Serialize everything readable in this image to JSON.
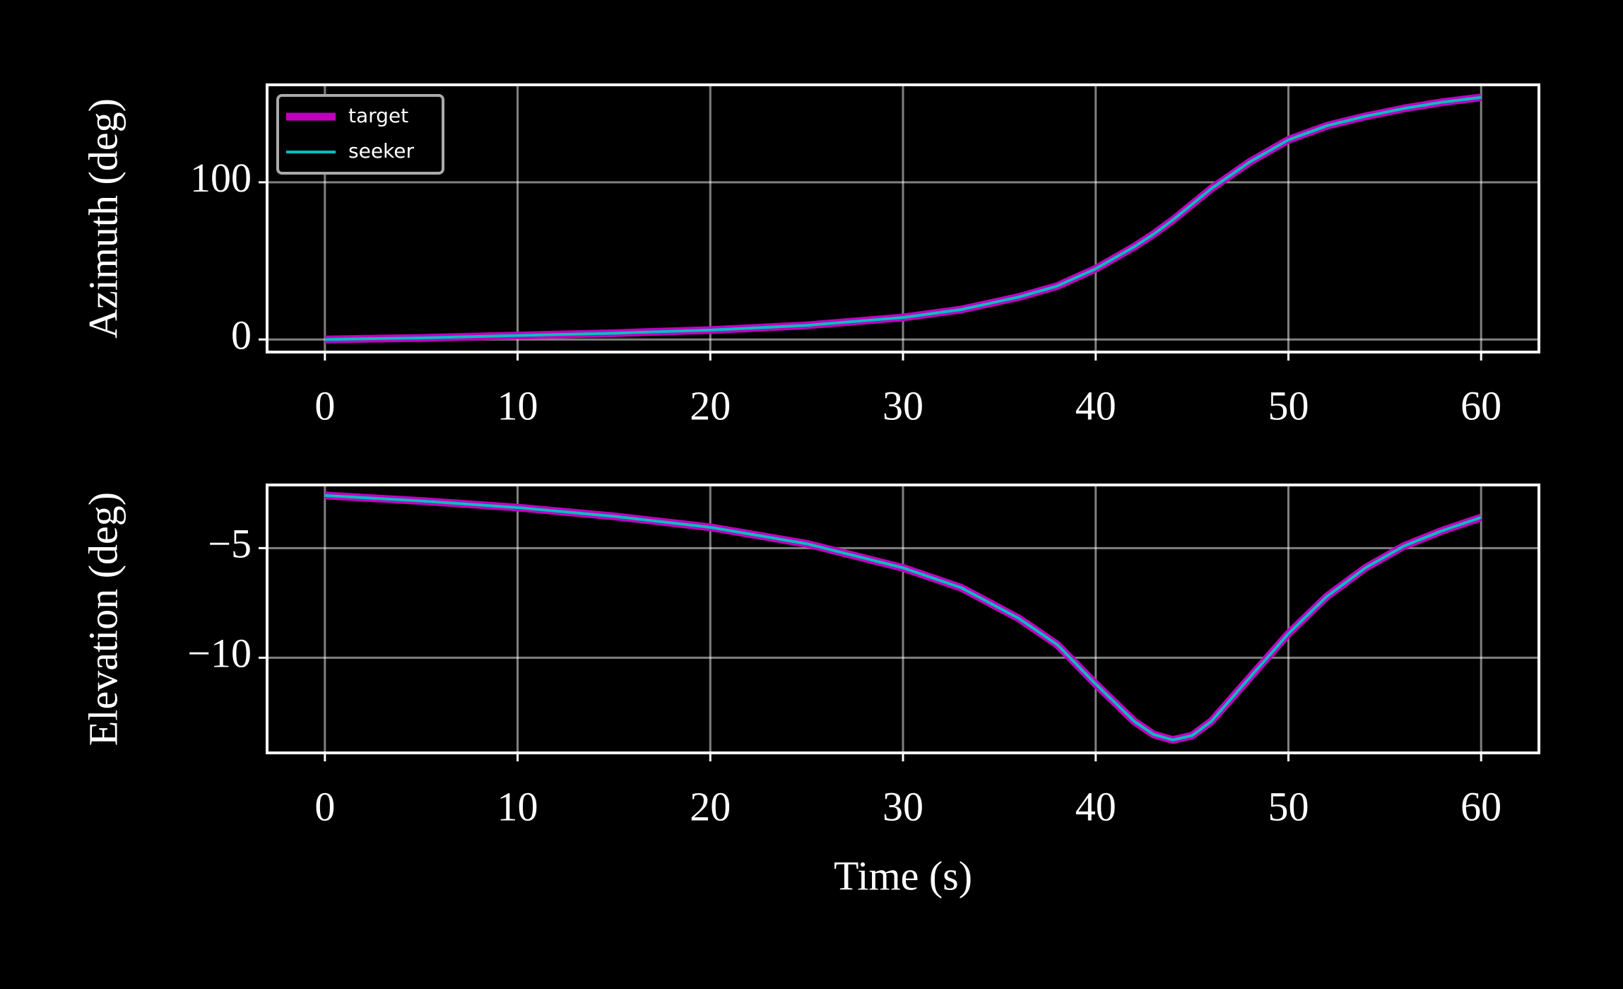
{
  "chart_data": [
    {
      "type": "line",
      "ylabel": "Azimuth (deg)",
      "x": [
        0,
        5,
        10,
        15,
        20,
        25,
        30,
        33,
        36,
        38,
        40,
        42,
        43,
        44,
        45,
        46,
        48,
        50,
        52,
        54,
        56,
        58,
        60
      ],
      "series": [
        {
          "name": "target",
          "color": "#bf00bf",
          "values": [
            0,
            1,
            2.5,
            4,
            6,
            9,
            14,
            19,
            27,
            34,
            45,
            59,
            67,
            76,
            86,
            96,
            113,
            127,
            136,
            142,
            147,
            151,
            154
          ]
        },
        {
          "name": "seeker",
          "color": "#00bfbf",
          "values": [
            0,
            1,
            2.5,
            4,
            6,
            9,
            14,
            19,
            27,
            34,
            45,
            59,
            67,
            76,
            86,
            96,
            113,
            127,
            136,
            142,
            147,
            151,
            154
          ]
        }
      ],
      "xlim": [
        -3,
        63
      ],
      "xticks": [
        0,
        10,
        20,
        30,
        40,
        50,
        60
      ],
      "ylim": [
        -8,
        162
      ],
      "yticks": [
        0,
        100
      ],
      "grid": true,
      "legend": "upper left"
    },
    {
      "type": "line",
      "ylabel": "Elevation (deg)",
      "xlabel": "Time (s)",
      "x": [
        0,
        5,
        10,
        15,
        20,
        25,
        30,
        33,
        36,
        38,
        40,
        42,
        43,
        44,
        45,
        46,
        48,
        50,
        52,
        54,
        56,
        58,
        60
      ],
      "series": [
        {
          "name": "target",
          "color": "#bf00bf",
          "values": [
            -2.6,
            -2.85,
            -3.15,
            -3.55,
            -4.05,
            -4.8,
            -5.9,
            -6.8,
            -8.2,
            -9.4,
            -11.2,
            -12.9,
            -13.5,
            -13.75,
            -13.55,
            -12.9,
            -10.9,
            -8.9,
            -7.2,
            -5.9,
            -4.9,
            -4.2,
            -3.6
          ]
        },
        {
          "name": "seeker",
          "color": "#00bfbf",
          "values": [
            -2.6,
            -2.85,
            -3.15,
            -3.55,
            -4.05,
            -4.8,
            -5.9,
            -6.8,
            -8.2,
            -9.4,
            -11.2,
            -12.9,
            -13.5,
            -13.75,
            -13.55,
            -12.9,
            -10.9,
            -8.9,
            -7.2,
            -5.9,
            -4.9,
            -4.2,
            -3.6
          ]
        }
      ],
      "xlim": [
        -3,
        63
      ],
      "xticks": [
        0,
        10,
        20,
        30,
        40,
        50,
        60
      ],
      "ylim": [
        -14.34,
        -2.12
      ],
      "yticks": [
        {
          "value": -5,
          "label": "−5"
        },
        {
          "value": -10,
          "label": "−10"
        }
      ],
      "grid": true
    }
  ]
}
